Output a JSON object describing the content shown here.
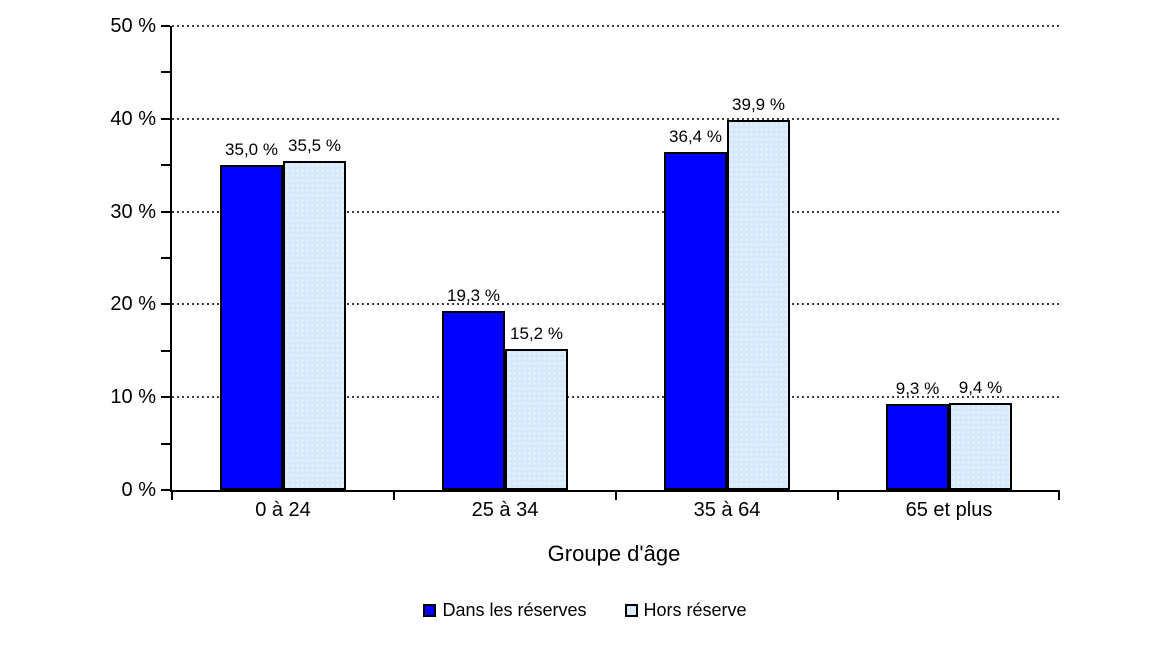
{
  "chart_data": {
    "type": "bar",
    "title": "",
    "xlabel": "Groupe d'âge",
    "ylabel": "",
    "categories": [
      "0 à 24",
      "25 à 34",
      "35 à 64",
      "65 et plus"
    ],
    "series": [
      {
        "name": "Dans les réserves",
        "color": "#0000FF",
        "values": [
          35.0,
          19.3,
          36.4,
          9.3
        ],
        "value_labels": [
          "35,0 %",
          "19,3 %",
          "36,4 %",
          "9,3 %"
        ]
      },
      {
        "name": "Hors réserve",
        "color": "#D6E8FA",
        "values": [
          35.5,
          15.2,
          39.9,
          9.4
        ],
        "value_labels": [
          "35,5 %",
          "15,2 %",
          "39,9 %",
          "9,4 %"
        ]
      }
    ],
    "ylim": [
      0,
      50
    ],
    "ytick_step": 10,
    "yminor_tick_step": 5,
    "ytick_labels": [
      "0 %",
      "10 %",
      "20 %",
      "30 %",
      "40 %",
      "50 %"
    ],
    "grid": "horizontal-dotted",
    "legend_position": "bottom",
    "axis_color": "#000000",
    "bar_border_color": "#000000",
    "background_color": "#FFFFFF"
  }
}
